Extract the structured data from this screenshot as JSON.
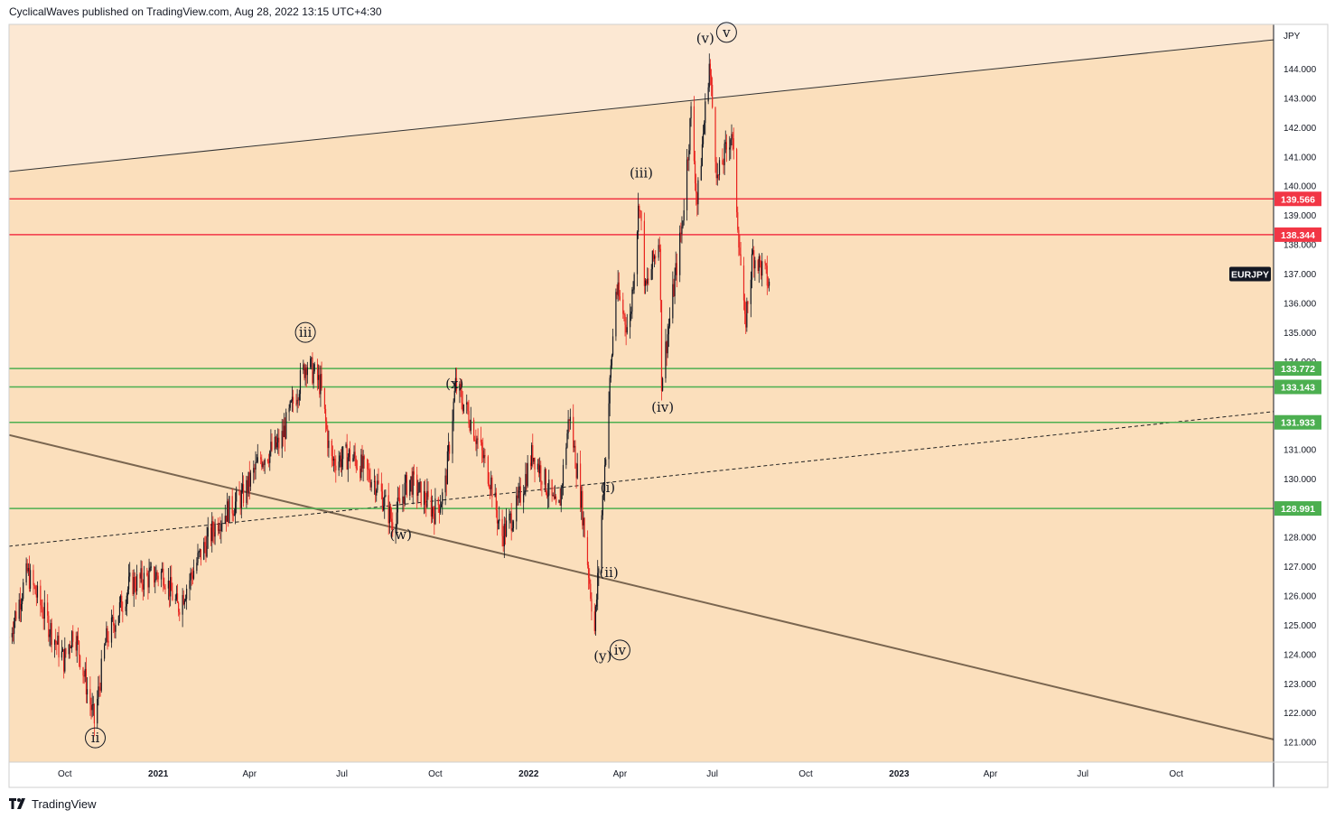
{
  "header": {
    "publisher_line": "CyclicalWaves published on TradingView.com, Aug 28, 2022 13:15 UTC+4:30"
  },
  "footer": {
    "brand": "TradingView",
    "logo_icon": "tradingview-logo-icon"
  },
  "colors": {
    "background_band": "#fbdfbc",
    "upper_region": "#fce8d3",
    "candle_up": "#131722",
    "candle_down": "#e8241f",
    "resistance": "#f23645",
    "support": "#4caf50",
    "channel_lower": "#7a6650",
    "channel_upper": "#333333"
  },
  "chart_data": {
    "type": "candlestick",
    "symbol": "EURJPY",
    "currency": "JPY",
    "ylim": [
      120.5,
      145
    ],
    "y_ticks": [
      121,
      122,
      123,
      124,
      125,
      126,
      127,
      128,
      129,
      130,
      131,
      132,
      133,
      134,
      135,
      136,
      137,
      138,
      139,
      140,
      141,
      142,
      143,
      144
    ],
    "x_ticks": [
      {
        "date": "2020-10-01",
        "label": "Oct"
      },
      {
        "date": "2021-01-01",
        "label": "2021"
      },
      {
        "date": "2021-04-01",
        "label": "Apr"
      },
      {
        "date": "2021-07-01",
        "label": "Jul"
      },
      {
        "date": "2021-10-01",
        "label": "Oct"
      },
      {
        "date": "2022-01-01",
        "label": "2022"
      },
      {
        "date": "2022-04-01",
        "label": "Apr"
      },
      {
        "date": "2022-07-01",
        "label": "Jul"
      },
      {
        "date": "2022-10-01",
        "label": "Oct"
      },
      {
        "date": "2023-01-01",
        "label": "2023"
      },
      {
        "date": "2023-04-01",
        "label": "Apr"
      },
      {
        "date": "2023-07-01",
        "label": "Jul"
      },
      {
        "date": "2023-10-01",
        "label": "Oct"
      }
    ],
    "xlim": [
      "2020-08-07",
      "2024-01-05"
    ],
    "price_anchors": [
      [
        "2020-08-07",
        124.6
      ],
      [
        "2020-08-25",
        126.8
      ],
      [
        "2020-09-08",
        125.6
      ],
      [
        "2020-09-30",
        123.8
      ],
      [
        "2020-10-10",
        124.9
      ],
      [
        "2020-10-30",
        121.7
      ],
      [
        "2020-11-10",
        124.4
      ],
      [
        "2020-12-04",
        126.4
      ],
      [
        "2021-01-06",
        126.8
      ],
      [
        "2021-01-20",
        125.6
      ],
      [
        "2021-02-10",
        127.3
      ],
      [
        "2021-03-01",
        128.6
      ],
      [
        "2021-03-25",
        129.4
      ],
      [
        "2021-04-12",
        130.7
      ],
      [
        "2021-05-01",
        131.2
      ],
      [
        "2021-05-27",
        134.0
      ],
      [
        "2021-06-10",
        133.2
      ],
      [
        "2021-06-20",
        130.6
      ],
      [
        "2021-07-10",
        130.8
      ],
      [
        "2021-08-05",
        129.8
      ],
      [
        "2021-08-20",
        128.5
      ],
      [
        "2021-09-05",
        130.0
      ],
      [
        "2021-09-30",
        128.9
      ],
      [
        "2021-10-10",
        129.5
      ],
      [
        "2021-10-21",
        133.2
      ],
      [
        "2021-11-05",
        132.0
      ],
      [
        "2021-11-25",
        129.9
      ],
      [
        "2021-12-05",
        128.0
      ],
      [
        "2021-12-20",
        129.0
      ],
      [
        "2022-01-05",
        130.9
      ],
      [
        "2022-01-15",
        130.1
      ],
      [
        "2022-01-30",
        128.7
      ],
      [
        "2022-02-10",
        132.2
      ],
      [
        "2022-02-22",
        129.2
      ],
      [
        "2022-03-07",
        124.8
      ],
      [
        "2022-03-16",
        129.9
      ],
      [
        "2022-03-28",
        136.5
      ],
      [
        "2022-04-10",
        135.0
      ],
      [
        "2022-04-20",
        139.6
      ],
      [
        "2022-04-26",
        136.4
      ],
      [
        "2022-05-10",
        138.3
      ],
      [
        "2022-05-12",
        133.4
      ],
      [
        "2022-06-01",
        138.6
      ],
      [
        "2022-06-10",
        142.5
      ],
      [
        "2022-06-16",
        139.4
      ],
      [
        "2022-06-28",
        144.2
      ],
      [
        "2022-07-06",
        140.2
      ],
      [
        "2022-07-20",
        141.9
      ],
      [
        "2022-08-02",
        135.2
      ],
      [
        "2022-08-10",
        137.7
      ],
      [
        "2022-08-22",
        137.0
      ],
      [
        "2022-08-26",
        136.6
      ]
    ],
    "horizontal_levels": [
      {
        "price": 139.566,
        "label": "139.566",
        "kind": "resistance"
      },
      {
        "price": 138.344,
        "label": "138.344",
        "kind": "resistance"
      },
      {
        "price": 133.772,
        "label": "133.772",
        "kind": "support"
      },
      {
        "price": 133.143,
        "label": "133.143",
        "kind": "support"
      },
      {
        "price": 131.933,
        "label": "131.933",
        "kind": "support"
      },
      {
        "price": 128.991,
        "label": "128.991",
        "kind": "support"
      }
    ],
    "trendlines": [
      {
        "name": "upper-channel",
        "from": [
          "2020-08-07",
          140.5
        ],
        "to": [
          "2024-01-05",
          145.0
        ],
        "style": "solid"
      },
      {
        "name": "lower-channel",
        "from": [
          "2020-08-07",
          131.5
        ],
        "to": [
          "2024-01-05",
          121.1
        ],
        "style": "solid"
      },
      {
        "name": "mid-dashed",
        "from": [
          "2020-08-07",
          127.7
        ],
        "to": [
          "2024-01-05",
          132.3
        ],
        "style": "dashed"
      }
    ],
    "last_price_label": "EURJPY",
    "last_price_value": 137.0,
    "wave_labels": [
      {
        "text": "ii",
        "date": "2020-10-31",
        "price": 121.0,
        "circled": true
      },
      {
        "text": "iii",
        "date": "2021-05-26",
        "price": 134.85,
        "circled": true
      },
      {
        "text": "(w)",
        "date": "2021-08-28",
        "price": 127.95,
        "circled": false
      },
      {
        "text": "(x)",
        "date": "2021-10-20",
        "price": 133.1,
        "circled": false
      },
      {
        "text": "(i)",
        "date": "2022-03-20",
        "price": 129.55,
        "circled": false
      },
      {
        "text": "(ii)",
        "date": "2022-03-21",
        "price": 126.65,
        "circled": false
      },
      {
        "text": "(y)",
        "date": "2022-03-15",
        "price": 123.8,
        "circled": false
      },
      {
        "text": "iv",
        "date": "2022-04-01",
        "price": 124.0,
        "circled": true
      },
      {
        "text": "(iii)",
        "date": "2022-04-22",
        "price": 140.3,
        "circled": false
      },
      {
        "text": "(iv)",
        "date": "2022-05-13",
        "price": 132.3,
        "circled": false
      },
      {
        "text": "(v)",
        "date": "2022-06-24",
        "price": 144.9,
        "circled": false
      },
      {
        "text": "v",
        "date": "2022-07-15",
        "price": 145.1,
        "circled": true
      }
    ]
  }
}
